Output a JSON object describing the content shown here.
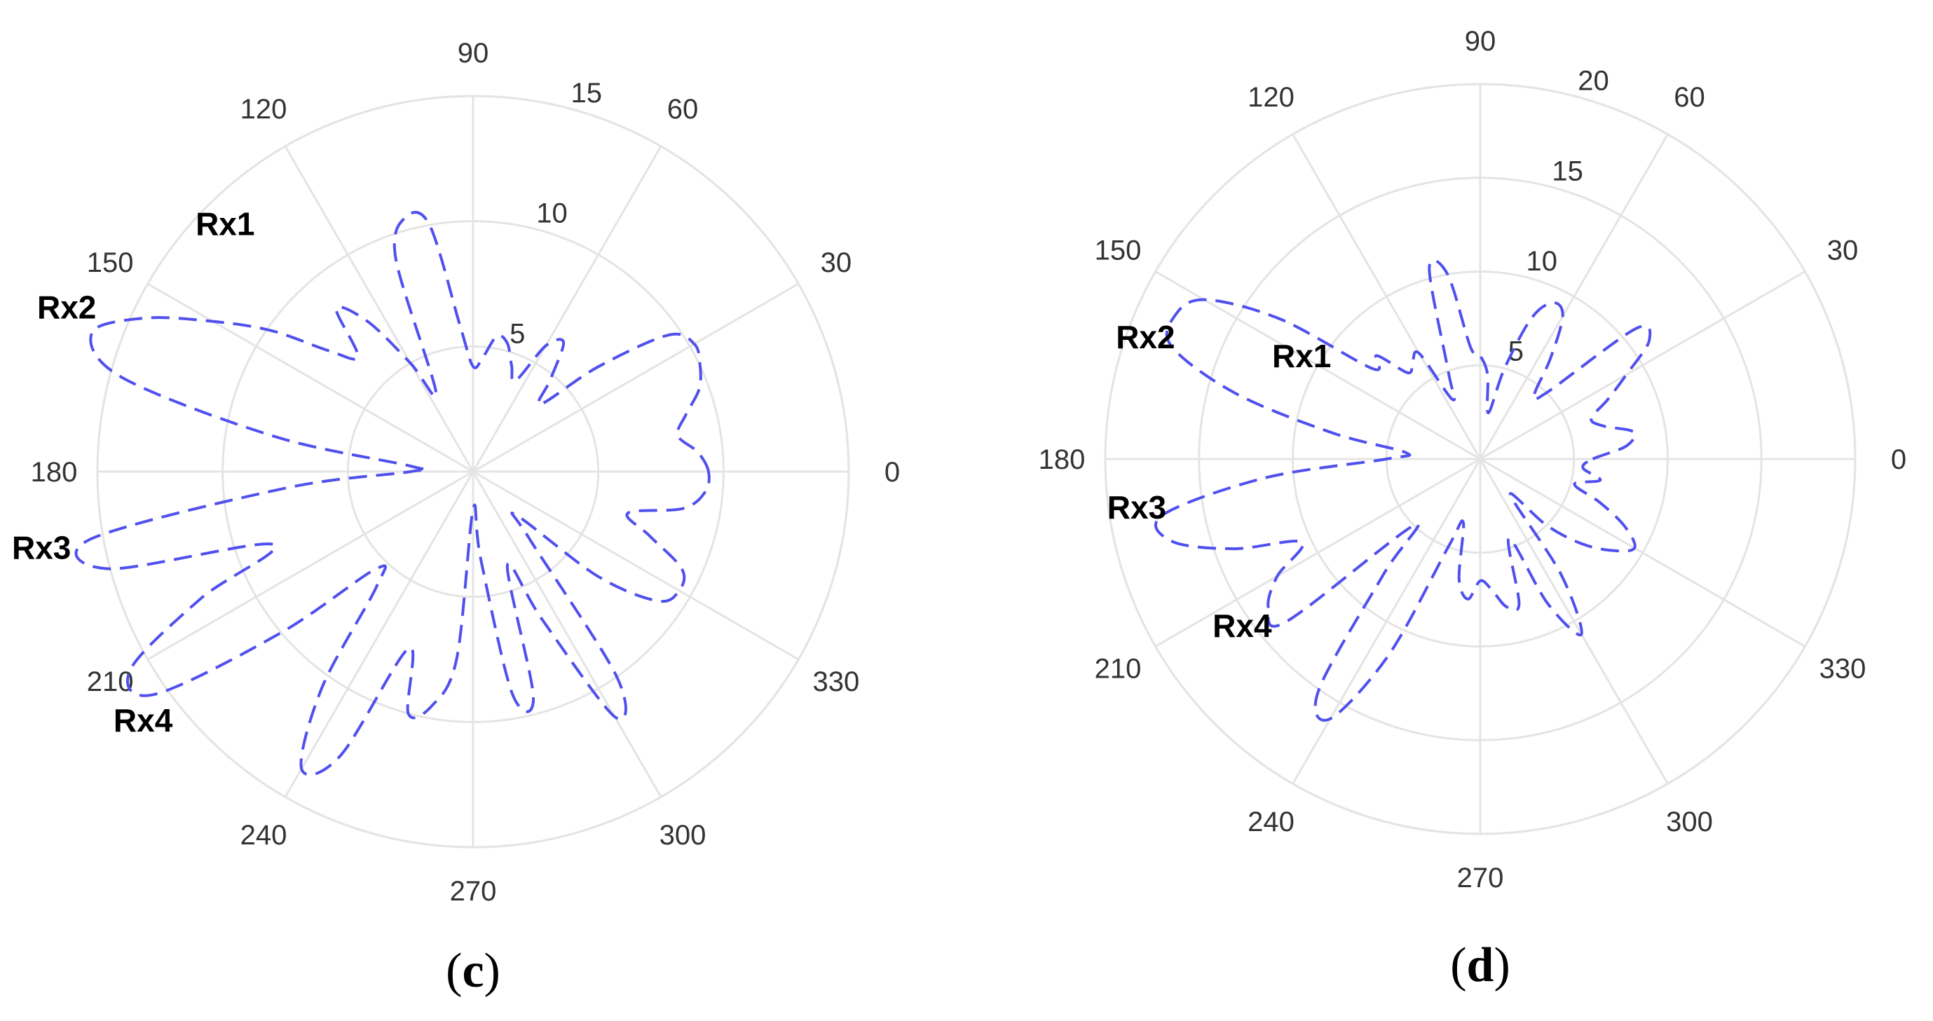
{
  "chart_data": [
    {
      "type": "polar-line",
      "panel_label": "c",
      "title": "",
      "angle_ticks": [
        0,
        30,
        60,
        90,
        120,
        150,
        180,
        210,
        240,
        270,
        300,
        330
      ],
      "radial_ticks": [
        5,
        10,
        15
      ],
      "rlim": [
        0,
        15
      ],
      "grid": true,
      "line_style": "dashed",
      "line_color": "#5050ee",
      "annotations": [
        {
          "text": "Rx1",
          "angle": 135,
          "r": 14
        },
        {
          "text": "Rx2",
          "angle": 158,
          "r": 17.5
        },
        {
          "text": "Rx3",
          "angle": 190,
          "r": 17.5
        },
        {
          "text": "Rx4",
          "angle": 217,
          "r": 16.5
        }
      ],
      "series": [
        {
          "theta": [
            0,
            5,
            10,
            15,
            20,
            25,
            30,
            35,
            40,
            45,
            50,
            55,
            60,
            65,
            70,
            75,
            80,
            85,
            90,
            95,
            100,
            105,
            110,
            115,
            120,
            125,
            130,
            135,
            140,
            145,
            150,
            155,
            160,
            165,
            170,
            175,
            180,
            185,
            190,
            195,
            200,
            205,
            210,
            215,
            220,
            225,
            230,
            235,
            240,
            245,
            250,
            255,
            260,
            265,
            270,
            275,
            280,
            285,
            290,
            295,
            300,
            305,
            310,
            315,
            320,
            325,
            330,
            335,
            340,
            345,
            350,
            355
          ],
          "r": [
            9.4,
            9.0,
            8.3,
            8.8,
            9.6,
            10.0,
            10.2,
            9.5,
            6.5,
            3.8,
            4.8,
            6.3,
            5.8,
            4.0,
            4.5,
            5.3,
            5.5,
            4.6,
            4.2,
            5.8,
            10.0,
            10.5,
            9.0,
            3.5,
            5.0,
            7.3,
            8.5,
            6.5,
            7.5,
            9.8,
            12.0,
            14.5,
            16.2,
            14.5,
            8.0,
            2.5,
            2.5,
            7.5,
            15.5,
            15.0,
            8.5,
            12.0,
            15.8,
            15.5,
            10.0,
            5.5,
            6.0,
            10.5,
            13.7,
            12.5,
            7.5,
            10.0,
            9.5,
            7.5,
            1.5,
            3.5,
            9.0,
            9.3,
            4.0,
            6.5,
            11.3,
            10.0,
            3.5,
            2.5,
            6.5,
            9.0,
            9.5,
            9.2,
            7.5,
            6.4,
            8.5,
            9.3
          ]
        }
      ]
    },
    {
      "type": "polar-line",
      "panel_label": "d",
      "title": "",
      "angle_ticks": [
        0,
        30,
        60,
        90,
        120,
        150,
        180,
        210,
        240,
        270,
        300,
        330
      ],
      "radial_ticks": [
        5,
        10,
        15,
        20
      ],
      "rlim": [
        0,
        20
      ],
      "grid": true,
      "line_style": "dashed",
      "line_color": "#5050ee",
      "annotations": [
        {
          "text": "Rx1",
          "angle": 150,
          "r": 11
        },
        {
          "text": "Rx2",
          "angle": 160,
          "r": 19
        },
        {
          "text": "Rx3",
          "angle": 188,
          "r": 18.5
        },
        {
          "text": "Rx4",
          "angle": 215,
          "r": 15.5
        }
      ],
      "series": [
        {
          "theta": [
            0,
            5,
            10,
            15,
            20,
            25,
            30,
            35,
            40,
            45,
            50,
            55,
            60,
            65,
            70,
            75,
            80,
            85,
            90,
            95,
            100,
            105,
            110,
            115,
            120,
            125,
            130,
            135,
            140,
            145,
            150,
            155,
            160,
            165,
            170,
            175,
            180,
            185,
            190,
            195,
            200,
            205,
            210,
            215,
            220,
            225,
            230,
            235,
            240,
            245,
            250,
            255,
            260,
            265,
            270,
            275,
            280,
            285,
            290,
            295,
            300,
            305,
            310,
            315,
            320,
            325,
            330,
            335,
            340,
            345,
            350,
            355
          ],
          "r": [
            6.0,
            7.8,
            8.3,
            6.8,
            6.3,
            7.5,
            9.0,
            11.0,
            10.8,
            5.0,
            4.5,
            6.5,
            8.8,
            9.2,
            8.0,
            5.0,
            2.5,
            4.5,
            5.5,
            6.0,
            10.0,
            10.5,
            5.0,
            3.5,
            6.5,
            6.3,
            6.0,
            7.8,
            7.5,
            13.0,
            17.0,
            18.0,
            17.5,
            13.5,
            8.0,
            4.0,
            5.0,
            11.5,
            17.2,
            17.0,
            14.0,
            10.5,
            12.5,
            13.8,
            13.5,
            5.0,
            8.0,
            15.0,
            16.0,
            11.5,
            5.0,
            3.5,
            6.5,
            7.5,
            6.5,
            7.0,
            8.0,
            8.0,
            4.5,
            8.5,
            10.8,
            7.5,
            2.5,
            5.0,
            7.0,
            8.5,
            9.5,
            8.5,
            6.8,
            5.2,
            6.5,
            5.5
          ]
        }
      ]
    }
  ]
}
